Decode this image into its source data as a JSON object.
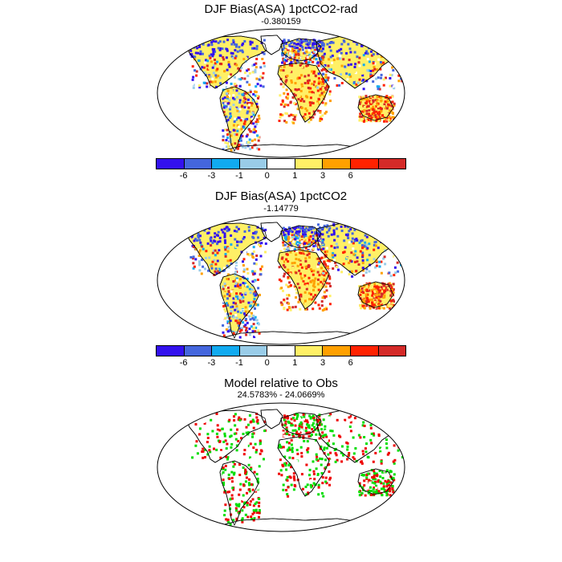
{
  "panels": [
    {
      "title": "DJF Bias(ASA) 1pctCO2-rad",
      "subtitle": "-0.380159"
    },
    {
      "title": "DJF Bias(ASA) 1pctCO2",
      "subtitle": "-1.14779"
    },
    {
      "title": "Model relative to Obs",
      "subtitle": "24.5783% - 24.0669%"
    }
  ],
  "colorbar": {
    "colors": [
      "#3311ee",
      "#4466dd",
      "#11aaf0",
      "#99cce8",
      "#ffffff",
      "#fff066",
      "#ffa000",
      "#ff2200",
      "#d42a28"
    ],
    "tick_labels": [
      "-6",
      "-3",
      "-1",
      "0",
      "1",
      "3",
      "6"
    ]
  },
  "relative_colors": {
    "model_better": "#00dd00",
    "obs_better": "#ee0000"
  }
}
